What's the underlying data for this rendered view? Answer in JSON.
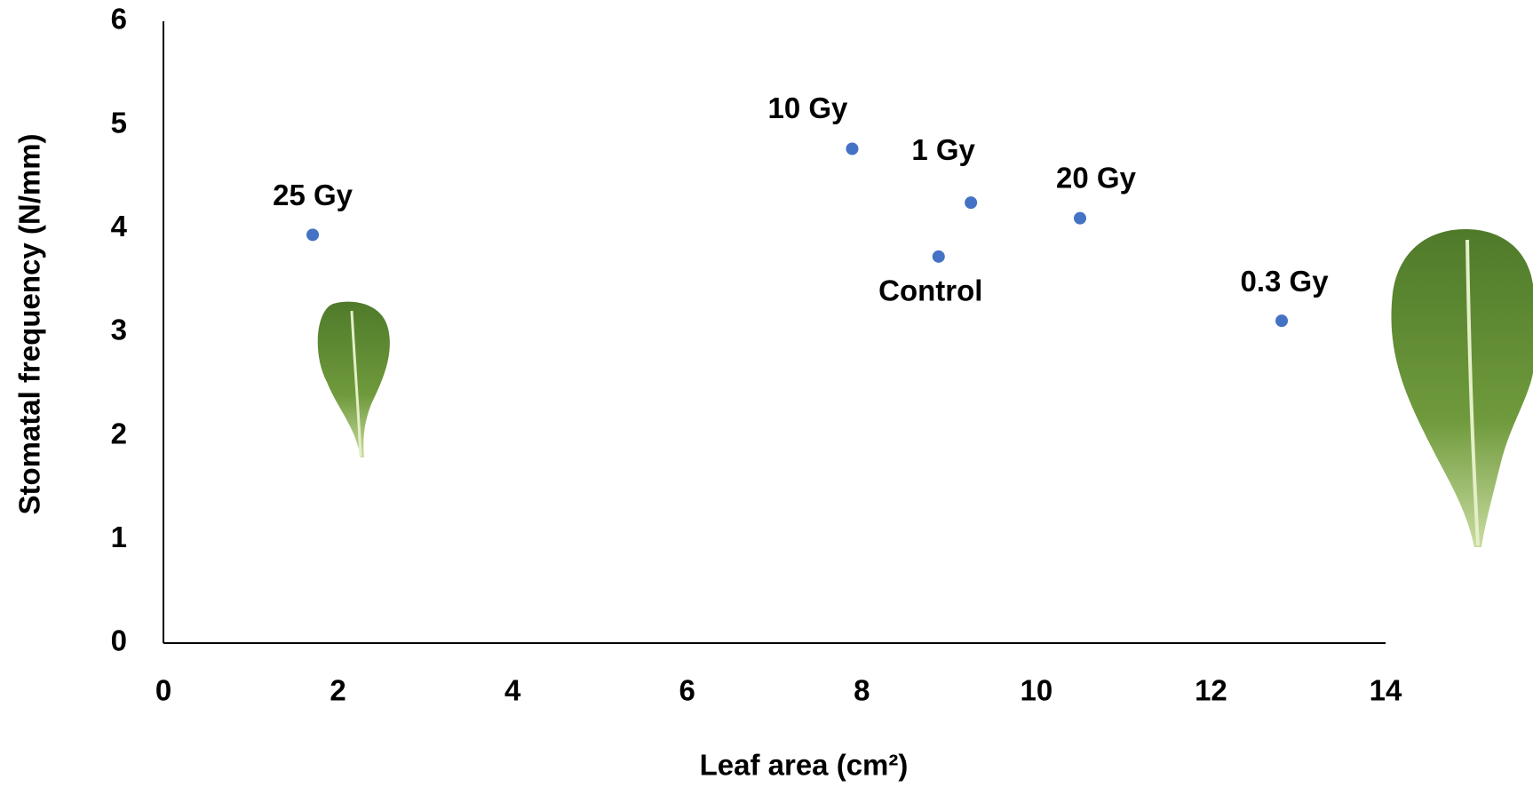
{
  "chart_data": {
    "type": "scatter",
    "xlabel": "Leaf area (cm²)",
    "ylabel": "Stomatal frequency (N/mm)",
    "x": [
      1.71,
      7.89,
      9.25,
      8.88,
      10.5,
      12.81
    ],
    "values": [
      3.94,
      4.77,
      4.25,
      3.73,
      4.1,
      3.11
    ],
    "labels": [
      "25 Gy",
      "10 Gy",
      "1 Gy",
      "Control",
      "20 Gy",
      "0.3 Gy"
    ],
    "color": "#4472c4",
    "xlim": [
      0,
      14
    ],
    "xticks": [
      0,
      2,
      4,
      6,
      8,
      10,
      12,
      14
    ],
    "ylim": [
      0,
      6
    ],
    "yticks": [
      0,
      1,
      2,
      3,
      4,
      5,
      6
    ],
    "grid": false
  }
}
